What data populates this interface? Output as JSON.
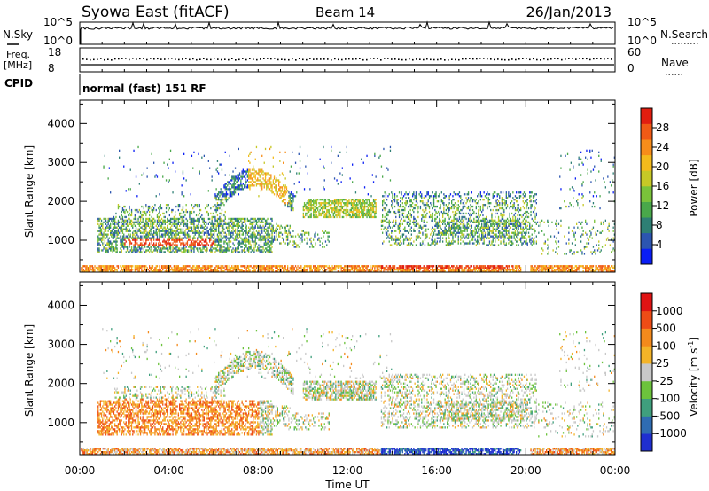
{
  "header": {
    "title": "Syowa East (fitACF)",
    "beam": "Beam 14",
    "date": "26/Jan/2013"
  },
  "noise_panel": {
    "left_label": "N.Sky",
    "right_label": "N.Search",
    "tick_top": "10^5",
    "tick_bottom": "10^0"
  },
  "freq_panel": {
    "left_label_1": "Freq.",
    "left_label_2": "[MHz]",
    "right_label": "Nave",
    "left_ticks": [
      "18",
      "8"
    ],
    "right_ticks": [
      "60",
      "0"
    ]
  },
  "cpid": {
    "label": "CPID",
    "value": "normal (fast) 151 RF"
  },
  "chart_data": [
    {
      "type": "heatmap",
      "ylabel": "Slant Range [km]",
      "yticks": [
        1000,
        2000,
        3000,
        4000
      ],
      "ylim": [
        180,
        4600
      ],
      "xlim": [
        0,
        24
      ],
      "colorbar": {
        "label": "Power [dB]",
        "ticks": [
          "4",
          "8",
          "12",
          "16",
          "20",
          "24",
          "28"
        ],
        "colors": [
          "#0a1ef5",
          "#2c55b0",
          "#2e7f74",
          "#49a84a",
          "#7ac33a",
          "#c6c826",
          "#f4bb1c",
          "#f78d1a",
          "#f05a16",
          "#e11e10"
        ]
      }
    },
    {
      "type": "heatmap",
      "ylabel": "Slant Range [km]",
      "yticks": [
        1000,
        2000,
        3000,
        4000
      ],
      "ylim": [
        180,
        4600
      ],
      "xlim": [
        0,
        24
      ],
      "xlabel": "Time UT",
      "xticks": [
        "00:00",
        "04:00",
        "08:00",
        "12:00",
        "16:00",
        "20:00",
        "00:00"
      ],
      "colorbar": {
        "label": "Velocity [m s",
        "label_sup": "-1",
        "label_end": "]",
        "ticks": [
          "1000",
          "500",
          "100",
          "25",
          "-25",
          "-100",
          "-500",
          "-1000"
        ],
        "colors": [
          "#1f2fd0",
          "#2f6cb2",
          "#3f9f7d",
          "#6cc33c",
          "#c8c8c8",
          "#f4b428",
          "#f48a1c",
          "#ee4c16",
          "#e01414"
        ]
      }
    }
  ]
}
